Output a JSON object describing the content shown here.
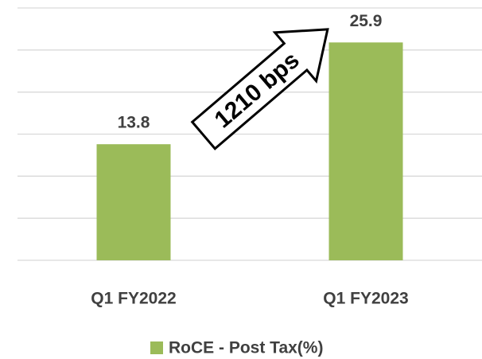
{
  "chart_data": {
    "type": "bar",
    "categories": [
      "Q1 FY2022",
      "Q1 FY2023"
    ],
    "series": [
      {
        "name": "RoCE - Post Tax(%)",
        "color": "#9bbb59",
        "values": [
          13.8,
          25.9
        ]
      }
    ],
    "ylim": [
      0,
      30
    ],
    "yticks": [
      0,
      5,
      10,
      15,
      20,
      25,
      30
    ],
    "grid": true,
    "annotations": [
      "1210 bps"
    ],
    "legend": "bottom"
  }
}
